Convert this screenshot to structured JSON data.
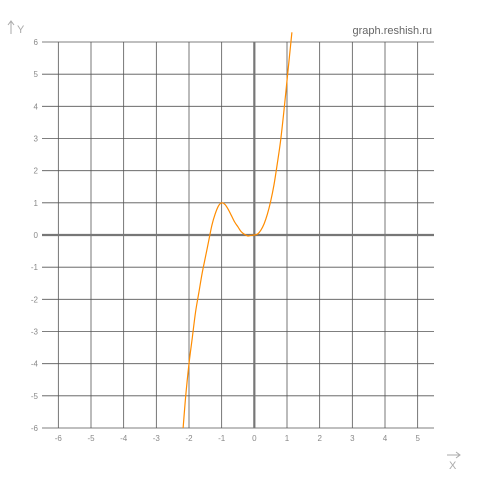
{
  "watermark": "graph.reshish.ru",
  "colors": {
    "grid": "#555555",
    "axis": "#777777",
    "curve": "#ff8c00",
    "arrow": "#aaaaaa"
  },
  "chart_data": {
    "type": "line",
    "title": "",
    "xlabel": "X",
    "ylabel": "Y",
    "xlim": [
      -6.5,
      5.5
    ],
    "ylim": [
      -6,
      6
    ],
    "grid": true,
    "x_ticks": [
      "-6",
      "-5",
      "-4",
      "-3",
      "-2",
      "-1",
      "0",
      "1",
      "2",
      "3",
      "4",
      "5"
    ],
    "y_ticks": [
      "6",
      "5",
      "4",
      "3",
      "2",
      "1",
      "0",
      "-1",
      "-2",
      "-3",
      "-4",
      "-5",
      "-6"
    ],
    "series": [
      {
        "x": [
          -2.18,
          -2.1,
          -2.0,
          -1.9,
          -1.8,
          -1.7,
          -1.6,
          -1.5,
          -1.4,
          -1.3,
          -1.2,
          -1.1,
          -1.0,
          -0.9,
          -0.8,
          -0.7,
          -0.6,
          -0.5,
          -0.4,
          -0.3,
          -0.2,
          -0.1,
          0.0,
          0.1,
          0.2,
          0.3,
          0.4,
          0.5,
          0.6,
          0.7,
          0.8,
          0.9,
          1.0,
          1.1,
          1.15
        ],
        "y": [
          -6.0,
          -5.0,
          -4.0,
          -3.2,
          -2.4,
          -1.8,
          -1.2,
          -0.7,
          -0.2,
          0.3,
          0.65,
          0.9,
          1.0,
          0.95,
          0.8,
          0.6,
          0.4,
          0.25,
          0.1,
          0.02,
          -0.03,
          -0.01,
          0.0,
          0.03,
          0.15,
          0.35,
          0.65,
          1.05,
          1.55,
          2.2,
          2.9,
          3.8,
          4.8,
          5.8,
          6.3
        ]
      }
    ]
  }
}
